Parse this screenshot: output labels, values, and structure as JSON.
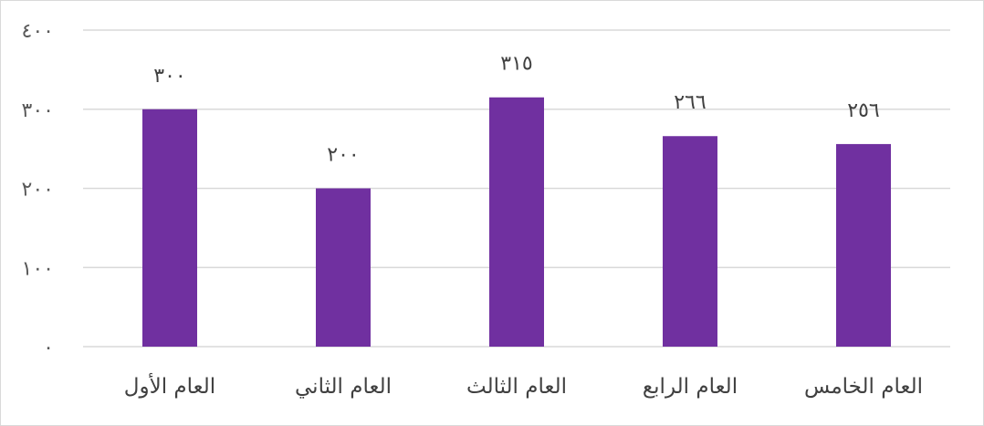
{
  "chart_data": {
    "type": "bar",
    "categories": [
      "العام الأول",
      "العام الثاني",
      "العام الثالث",
      "العام الرابع",
      "العام الخامس"
    ],
    "values": [
      300,
      200,
      315,
      266,
      256
    ],
    "data_labels": [
      "٣٠٠",
      "٢٠٠",
      "٣١٥",
      "٢٦٦",
      "٢٥٦"
    ],
    "y_ticks": [
      0,
      100,
      200,
      300,
      400
    ],
    "y_tick_labels": [
      "٠",
      "١٠٠",
      "٢٠٠",
      "٣٠٠",
      "٤٠٠"
    ],
    "ylim": [
      0,
      400
    ],
    "grid": true,
    "legend": "none",
    "bar_color": "#7030a0",
    "grid_color": "#d9d9d9"
  }
}
